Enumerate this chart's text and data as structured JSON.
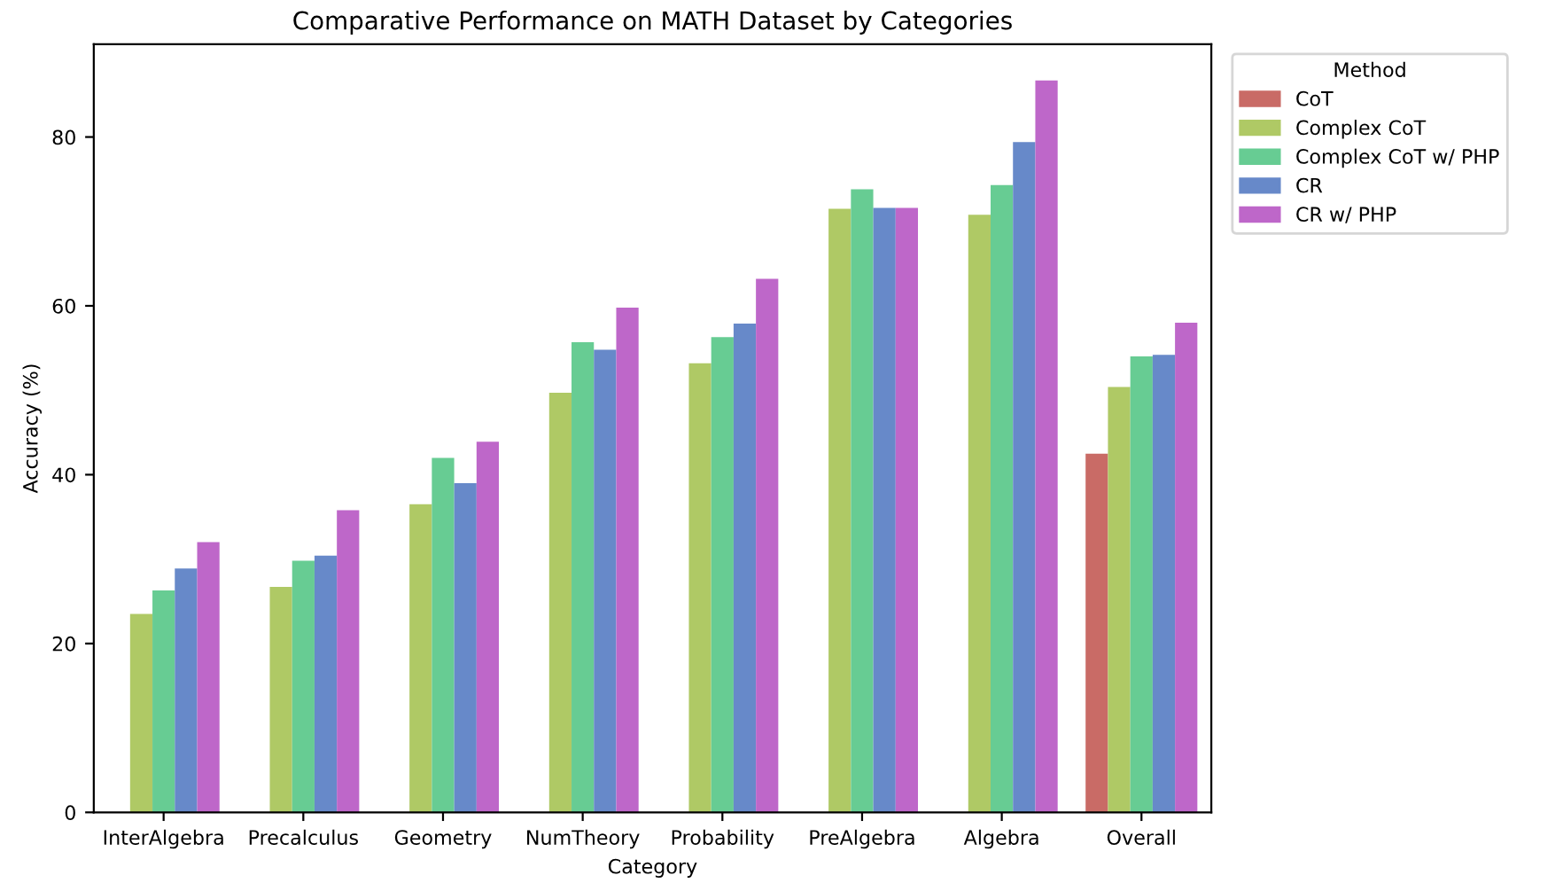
{
  "chart_data": {
    "type": "bar",
    "title": "Comparative Performance on MATH Dataset by Categories",
    "xlabel": "Category",
    "ylabel": "Accuracy (%)",
    "legend_title": "Method",
    "categories": [
      "InterAlgebra",
      "Precalculus",
      "Geometry",
      "NumTheory",
      "Probability",
      "PreAlgebra",
      "Algebra",
      "Overall"
    ],
    "series": [
      {
        "name": "CoT",
        "color": "#c96b66",
        "values": [
          null,
          null,
          null,
          null,
          null,
          null,
          null,
          42.5
        ]
      },
      {
        "name": "Complex CoT",
        "color": "#afc965",
        "values": [
          23.5,
          26.7,
          36.5,
          49.7,
          53.2,
          71.5,
          70.8,
          50.4
        ]
      },
      {
        "name": "Complex CoT w/ PHP",
        "color": "#67cc93",
        "values": [
          26.3,
          29.8,
          42.0,
          55.7,
          56.3,
          73.8,
          74.3,
          54.0
        ]
      },
      {
        "name": "CR",
        "color": "#6789c9",
        "values": [
          28.9,
          30.4,
          39.0,
          54.8,
          57.9,
          71.6,
          79.4,
          54.2
        ]
      },
      {
        "name": "CR w/ PHP",
        "color": "#be67c9",
        "values": [
          32.0,
          35.8,
          43.9,
          59.8,
          63.2,
          71.6,
          86.7,
          58.0
        ]
      }
    ],
    "ylim": [
      0,
      91
    ],
    "yticks": [
      0,
      20,
      40,
      60,
      80
    ],
    "grid": false,
    "legend": "top right"
  }
}
